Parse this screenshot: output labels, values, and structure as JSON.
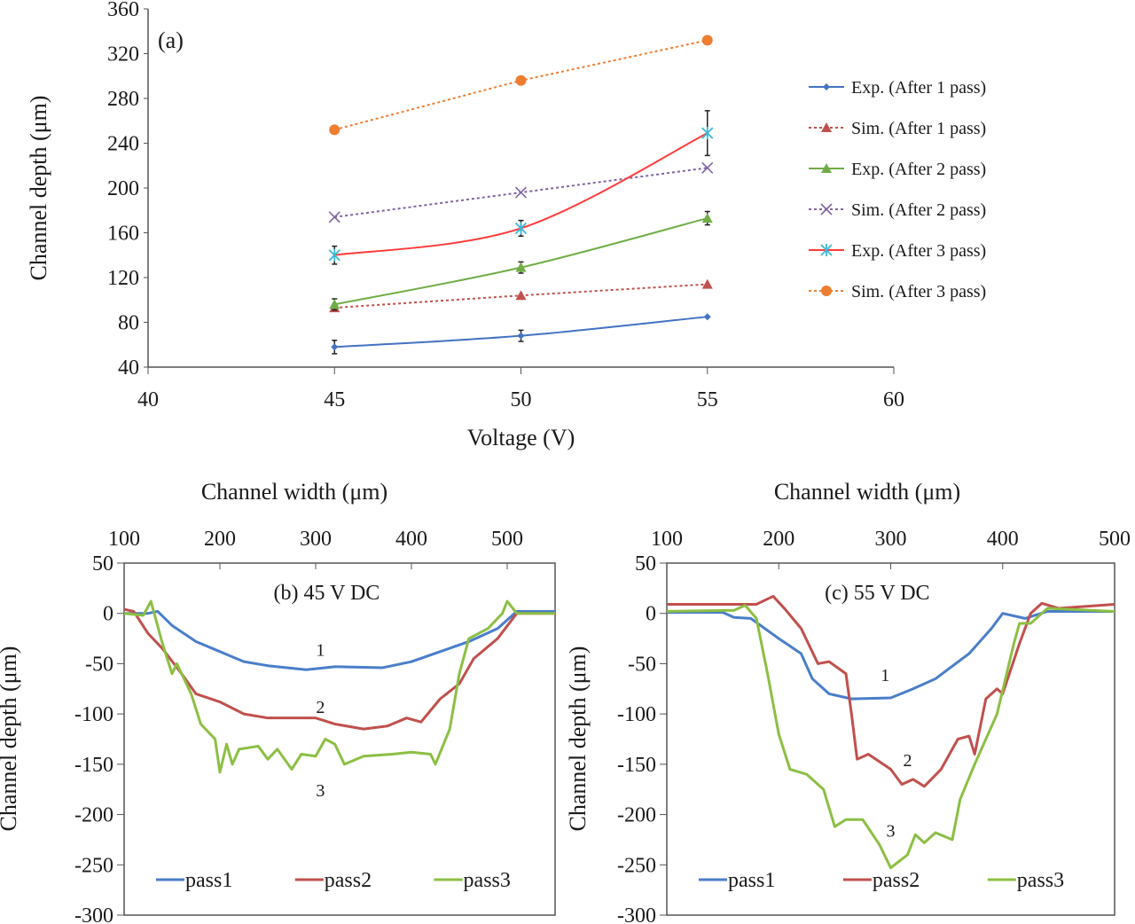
{
  "chart_data": [
    {
      "type": "line",
      "panel_label": "(a)",
      "xlabel": "Voltage (V)",
      "ylabel": "Channel depth (μm)",
      "xlim": [
        40,
        60
      ],
      "ylim": [
        40,
        360
      ],
      "xticks": [
        40,
        45,
        50,
        55,
        60
      ],
      "yticks": [
        40,
        80,
        120,
        160,
        200,
        240,
        280,
        320,
        360
      ],
      "legend_position": "right",
      "grid": false,
      "x": [
        45,
        50,
        55
      ],
      "series": [
        {
          "name": "Exp.  (After 1 pass)",
          "values": [
            58,
            68,
            85
          ],
          "errors": [
            6,
            5,
            0
          ],
          "color": "#4472c4",
          "dash": false,
          "marker": "diamond",
          "smooth": true
        },
        {
          "name": "Sim. (After 1 pass)",
          "values": [
            93,
            104,
            114
          ],
          "color": "#c0504d",
          "dash": true,
          "marker": "triangle"
        },
        {
          "name": "Exp.  (After 2 pass)",
          "values": [
            96,
            129,
            173
          ],
          "errors": [
            5,
            5,
            6
          ],
          "color": "#70ad47",
          "dash": false,
          "marker": "triangle",
          "smooth": true
        },
        {
          "name": "Sim. (After 2 pass)",
          "values": [
            174,
            196,
            218
          ],
          "color": "#8064a2",
          "dash": true,
          "marker": "x"
        },
        {
          "name": "Exp.  (After 3 pass)",
          "values": [
            140,
            164,
            249
          ],
          "errors": [
            8,
            7,
            20
          ],
          "color": "#ff3b3b",
          "dash": false,
          "marker": "star",
          "smooth": true
        },
        {
          "name": "Sim. (After 3 pass)",
          "values": [
            252,
            296,
            332
          ],
          "color": "#ed7d31",
          "dash": true,
          "marker": "circle"
        }
      ]
    },
    {
      "type": "line",
      "panel_label": "(b) 45 V DC",
      "xlabel": "Channel width (μm)",
      "ylabel": "Channel depth (μm)",
      "xlim": [
        100,
        550
      ],
      "ylim": [
        -300,
        50
      ],
      "xticks": [
        100,
        200,
        300,
        400,
        500
      ],
      "yticks": [
        50,
        0,
        -50,
        -100,
        -150,
        -200,
        -250,
        -300
      ],
      "legend_position": "bottom",
      "annotations": [
        {
          "text": "1",
          "x": 305,
          "y": -35
        },
        {
          "text": "2",
          "x": 305,
          "y": -92
        },
        {
          "text": "3",
          "x": 305,
          "y": -175
        }
      ],
      "series": [
        {
          "name": "pass1",
          "color": "#4a7ec9",
          "points": [
            [
              100,
              0
            ],
            [
              125,
              0
            ],
            [
              135,
              2
            ],
            [
              150,
              -12
            ],
            [
              175,
              -28
            ],
            [
              200,
              -38
            ],
            [
              225,
              -48
            ],
            [
              250,
              -52
            ],
            [
              290,
              -56
            ],
            [
              320,
              -53
            ],
            [
              370,
              -54
            ],
            [
              400,
              -48
            ],
            [
              430,
              -38
            ],
            [
              460,
              -28
            ],
            [
              490,
              -15
            ],
            [
              510,
              2
            ],
            [
              550,
              2
            ]
          ]
        },
        {
          "name": "pass2",
          "color": "#c0504d",
          "points": [
            [
              100,
              4
            ],
            [
              110,
              2
            ],
            [
              125,
              -20
            ],
            [
              140,
              -35
            ],
            [
              160,
              -60
            ],
            [
              175,
              -80
            ],
            [
              200,
              -88
            ],
            [
              225,
              -100
            ],
            [
              250,
              -104
            ],
            [
              300,
              -104
            ],
            [
              320,
              -110
            ],
            [
              350,
              -115
            ],
            [
              375,
              -112
            ],
            [
              395,
              -104
            ],
            [
              410,
              -108
            ],
            [
              430,
              -85
            ],
            [
              450,
              -70
            ],
            [
              465,
              -45
            ],
            [
              490,
              -25
            ],
            [
              510,
              0
            ],
            [
              550,
              0
            ]
          ]
        },
        {
          "name": "pass3",
          "color": "#8cbf44",
          "points": [
            [
              100,
              0
            ],
            [
              120,
              -2
            ],
            [
              128,
              12
            ],
            [
              140,
              -30
            ],
            [
              150,
              -60
            ],
            [
              155,
              -50
            ],
            [
              170,
              -80
            ],
            [
              180,
              -110
            ],
            [
              195,
              -125
            ],
            [
              200,
              -158
            ],
            [
              207,
              -130
            ],
            [
              213,
              -150
            ],
            [
              220,
              -135
            ],
            [
              240,
              -132
            ],
            [
              250,
              -145
            ],
            [
              260,
              -135
            ],
            [
              275,
              -155
            ],
            [
              285,
              -140
            ],
            [
              300,
              -142
            ],
            [
              310,
              -125
            ],
            [
              320,
              -130
            ],
            [
              330,
              -150
            ],
            [
              350,
              -142
            ],
            [
              380,
              -140
            ],
            [
              400,
              -138
            ],
            [
              420,
              -140
            ],
            [
              425,
              -150
            ],
            [
              440,
              -115
            ],
            [
              450,
              -60
            ],
            [
              460,
              -25
            ],
            [
              480,
              -15
            ],
            [
              495,
              0
            ],
            [
              500,
              12
            ],
            [
              510,
              0
            ],
            [
              550,
              0
            ]
          ]
        }
      ]
    },
    {
      "type": "line",
      "panel_label": "(c) 55 V DC",
      "xlabel": "Channel width (μm)",
      "ylabel": "Channel depth (μm)",
      "xlim": [
        100,
        500
      ],
      "ylim": [
        -300,
        50
      ],
      "xticks": [
        100,
        200,
        300,
        400,
        500
      ],
      "yticks": [
        50,
        0,
        -50,
        -100,
        -150,
        -200,
        -250,
        -300
      ],
      "legend_position": "bottom",
      "annotations": [
        {
          "text": "1",
          "x": 295,
          "y": -60
        },
        {
          "text": "2",
          "x": 315,
          "y": -145
        },
        {
          "text": "3",
          "x": 300,
          "y": -215
        }
      ],
      "series": [
        {
          "name": "pass1",
          "color": "#4a7ec9",
          "points": [
            [
              100,
              1
            ],
            [
              150,
              1
            ],
            [
              160,
              -4
            ],
            [
              175,
              -5
            ],
            [
              200,
              -25
            ],
            [
              220,
              -40
            ],
            [
              230,
              -65
            ],
            [
              245,
              -80
            ],
            [
              265,
              -85
            ],
            [
              300,
              -84
            ],
            [
              320,
              -75
            ],
            [
              340,
              -65
            ],
            [
              370,
              -40
            ],
            [
              390,
              -15
            ],
            [
              400,
              0
            ],
            [
              420,
              -5
            ],
            [
              440,
              2
            ],
            [
              500,
              2
            ]
          ]
        },
        {
          "name": "pass2",
          "color": "#c0504d",
          "points": [
            [
              100,
              9
            ],
            [
              180,
              9
            ],
            [
              195,
              17
            ],
            [
              205,
              5
            ],
            [
              220,
              -15
            ],
            [
              235,
              -50
            ],
            [
              245,
              -48
            ],
            [
              260,
              -60
            ],
            [
              265,
              -100
            ],
            [
              270,
              -145
            ],
            [
              280,
              -140
            ],
            [
              300,
              -155
            ],
            [
              310,
              -170
            ],
            [
              320,
              -165
            ],
            [
              330,
              -172
            ],
            [
              345,
              -155
            ],
            [
              360,
              -125
            ],
            [
              370,
              -122
            ],
            [
              375,
              -140
            ],
            [
              385,
              -85
            ],
            [
              395,
              -75
            ],
            [
              400,
              -80
            ],
            [
              415,
              -30
            ],
            [
              425,
              0
            ],
            [
              435,
              10
            ],
            [
              450,
              5
            ],
            [
              500,
              9
            ]
          ]
        },
        {
          "name": "pass3",
          "color": "#8cbf44",
          "points": [
            [
              100,
              2
            ],
            [
              160,
              3
            ],
            [
              170,
              8
            ],
            [
              180,
              -5
            ],
            [
              190,
              -60
            ],
            [
              200,
              -120
            ],
            [
              210,
              -155
            ],
            [
              225,
              -160
            ],
            [
              240,
              -175
            ],
            [
              250,
              -212
            ],
            [
              260,
              -205
            ],
            [
              275,
              -205
            ],
            [
              290,
              -230
            ],
            [
              300,
              -253
            ],
            [
              315,
              -240
            ],
            [
              322,
              -220
            ],
            [
              330,
              -228
            ],
            [
              340,
              -218
            ],
            [
              355,
              -225
            ],
            [
              362,
              -185
            ],
            [
              375,
              -150
            ],
            [
              395,
              -100
            ],
            [
              410,
              -30
            ],
            [
              415,
              -10
            ],
            [
              425,
              -10
            ],
            [
              440,
              5
            ],
            [
              500,
              2
            ]
          ]
        }
      ]
    }
  ]
}
